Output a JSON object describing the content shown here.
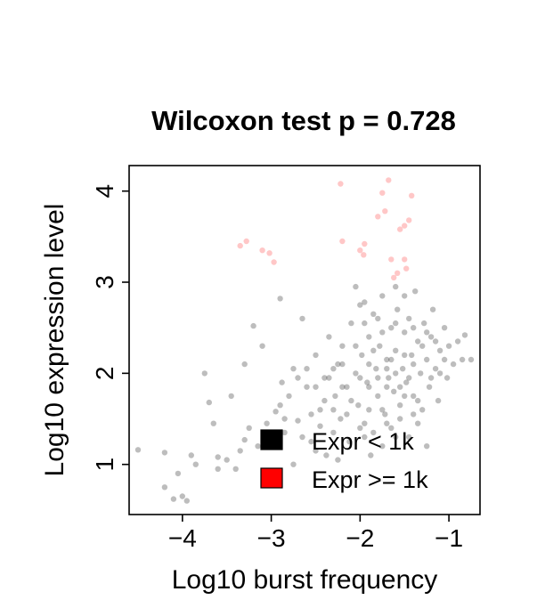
{
  "chart_data": {
    "type": "scatter",
    "title": "Wilcoxon test p = 0.728",
    "xlabel": "Log10 burst frequency",
    "ylabel": "Log10 expression level",
    "xlim": [
      -4.6,
      -0.65
    ],
    "ylim": [
      0.45,
      4.28
    ],
    "xticks": [
      -4,
      -3,
      -2,
      -1
    ],
    "yticks": [
      1,
      2,
      3,
      4
    ],
    "xtick_labels": [
      "−4",
      "−3",
      "−2",
      "−1"
    ],
    "ytick_labels": [
      "1",
      "2",
      "3",
      "4"
    ],
    "legend_position": "bottom-right",
    "series": [
      {
        "name": "Expr < 1k",
        "color": "#000000",
        "points": [
          [
            -4.5,
            1.16
          ],
          [
            -4.2,
            1.13
          ],
          [
            -4.2,
            0.75
          ],
          [
            -4.1,
            0.62
          ],
          [
            -4.05,
            0.9
          ],
          [
            -4.0,
            0.65
          ],
          [
            -3.95,
            0.6
          ],
          [
            -3.9,
            1.1
          ],
          [
            -3.85,
            1.0
          ],
          [
            -3.75,
            2.0
          ],
          [
            -3.7,
            1.68
          ],
          [
            -3.65,
            1.45
          ],
          [
            -3.6,
            1.08
          ],
          [
            -3.45,
            1.75
          ],
          [
            -3.4,
            0.95
          ],
          [
            -3.3,
            1.27
          ],
          [
            -3.3,
            2.1
          ],
          [
            -3.25,
            1.4
          ],
          [
            -3.2,
            2.52
          ],
          [
            -3.1,
            2.3
          ],
          [
            -3.0,
            1.2
          ],
          [
            -2.95,
            1.58
          ],
          [
            -2.9,
            2.82
          ],
          [
            -2.88,
            1.9
          ],
          [
            -2.85,
            1.35
          ],
          [
            -2.8,
            1.75
          ],
          [
            -2.75,
            1.0
          ],
          [
            -2.7,
            1.48
          ],
          [
            -2.65,
            2.6
          ],
          [
            -2.6,
            1.85
          ],
          [
            -2.55,
            1.25
          ],
          [
            -2.5,
            2.2
          ],
          [
            -2.45,
            1.6
          ],
          [
            -2.4,
            1.95
          ],
          [
            -2.38,
            1.1
          ],
          [
            -2.35,
            2.4
          ],
          [
            -2.3,
            1.35
          ],
          [
            -2.28,
            1.75
          ],
          [
            -2.25,
            2.1
          ],
          [
            -2.22,
            1.5
          ],
          [
            -2.2,
            2.3
          ],
          [
            -2.15,
            1.85
          ],
          [
            -2.12,
            1.25
          ],
          [
            -2.1,
            2.55
          ],
          [
            -2.05,
            2.0
          ],
          [
            -2.02,
            1.65
          ],
          [
            -2.0,
            2.75
          ],
          [
            -1.98,
            2.2
          ],
          [
            -1.95,
            1.45
          ],
          [
            -1.92,
            1.9
          ],
          [
            -1.9,
            2.4
          ],
          [
            -1.88,
            1.1
          ],
          [
            -1.85,
            2.65
          ],
          [
            -1.82,
            2.05
          ],
          [
            -1.8,
            1.75
          ],
          [
            -1.78,
            2.3
          ],
          [
            -1.75,
            2.85
          ],
          [
            -1.72,
            1.55
          ],
          [
            -1.7,
            2.15
          ],
          [
            -1.68,
            1.95
          ],
          [
            -1.65,
            2.5
          ],
          [
            -1.62,
            1.8
          ],
          [
            -1.6,
            2.25
          ],
          [
            -1.58,
            2.7
          ],
          [
            -1.55,
            1.65
          ],
          [
            -1.52,
            2.05
          ],
          [
            -1.5,
            2.45
          ],
          [
            -1.48,
            1.9
          ],
          [
            -1.45,
            2.6
          ],
          [
            -1.42,
            2.2
          ],
          [
            -1.4,
            1.75
          ],
          [
            -1.38,
            2.9
          ],
          [
            -1.35,
            2.35
          ],
          [
            -1.32,
            2.0
          ],
          [
            -1.3,
            1.6
          ],
          [
            -1.28,
            2.55
          ],
          [
            -1.25,
            2.15
          ],
          [
            -1.22,
            1.85
          ],
          [
            -1.2,
            2.4
          ],
          [
            -1.18,
            2.7
          ],
          [
            -1.15,
            2.05
          ],
          [
            -1.12,
            1.7
          ],
          [
            -1.1,
            2.25
          ],
          [
            -1.05,
            2.5
          ],
          [
            -1.02,
            1.95
          ],
          [
            -1.0,
            2.3
          ],
          [
            -0.95,
            2.1
          ],
          [
            -0.9,
            2.35
          ],
          [
            -0.85,
            2.15
          ],
          [
            -0.82,
            2.42
          ],
          [
            -0.75,
            2.15
          ],
          [
            -1.95,
            2.78
          ],
          [
            -1.85,
            1.35
          ],
          [
            -1.75,
            1.2
          ],
          [
            -1.65,
            1.4
          ],
          [
            -2.25,
            1.05
          ],
          [
            -2.45,
            1.42
          ],
          [
            -1.55,
            1.5
          ],
          [
            -1.45,
            1.3
          ],
          [
            -1.35,
            1.45
          ],
          [
            -1.25,
            1.2
          ],
          [
            -2.05,
            2.95
          ],
          [
            -1.6,
            2.95
          ],
          [
            -1.5,
            2.85
          ],
          [
            -1.9,
            1.6
          ],
          [
            -2.15,
            1.55
          ],
          [
            -1.7,
            1.45
          ],
          [
            -1.95,
            1.3
          ],
          [
            -1.8,
            2.6
          ],
          [
            -1.6,
            2.0
          ],
          [
            -1.4,
            2.1
          ],
          [
            -1.7,
            1.85
          ],
          [
            -1.9,
            2.1
          ],
          [
            -2.3,
            2.05
          ],
          [
            -2.1,
            1.7
          ],
          [
            -1.5,
            2.2
          ],
          [
            -1.3,
            2.3
          ],
          [
            -1.75,
            2.45
          ],
          [
            -2.0,
            1.95
          ],
          [
            -1.85,
            2.25
          ],
          [
            -1.55,
            1.85
          ],
          [
            -1.65,
            2.15
          ],
          [
            -1.45,
            1.95
          ],
          [
            -1.35,
            1.7
          ],
          [
            -1.2,
            1.95
          ],
          [
            -1.1,
            2.0
          ],
          [
            -1.25,
            2.45
          ],
          [
            -2.2,
            1.85
          ],
          [
            -2.4,
            1.7
          ],
          [
            -2.6,
            2.05
          ],
          [
            -2.7,
            1.95
          ],
          [
            -2.55,
            1.55
          ],
          [
            -2.35,
            1.95
          ],
          [
            -1.95,
            2.55
          ],
          [
            -1.6,
            2.55
          ],
          [
            -1.4,
            2.5
          ],
          [
            -1.15,
            2.35
          ],
          [
            -1.05,
            2.15
          ],
          [
            -1.7,
            2.05
          ],
          [
            -1.8,
            1.95
          ],
          [
            -1.5,
            1.75
          ],
          [
            -1.9,
            1.85
          ],
          [
            -2.05,
            2.3
          ],
          [
            -2.2,
            2.1
          ],
          [
            -2.5,
            1.85
          ],
          [
            -2.75,
            2.05
          ],
          [
            -2.9,
            1.65
          ],
          [
            -3.05,
            1.45
          ],
          [
            -3.15,
            1.2
          ],
          [
            -3.5,
            1.05
          ],
          [
            -3.6,
            0.95
          ],
          [
            -3.35,
            1.15
          ],
          [
            -2.85,
            1.5
          ],
          [
            -2.65,
            1.3
          ],
          [
            -2.5,
            1.15
          ],
          [
            -2.3,
            1.6
          ],
          [
            -2.0,
            1.4
          ],
          [
            -1.75,
            1.6
          ],
          [
            -1.6,
            1.3
          ],
          [
            -1.4,
            1.55
          ]
        ]
      },
      {
        "name": "Expr >= 1k",
        "color": "#ff0000",
        "points": [
          [
            -3.35,
            3.4
          ],
          [
            -3.28,
            3.45
          ],
          [
            -3.1,
            3.35
          ],
          [
            -3.02,
            3.32
          ],
          [
            -2.97,
            3.22
          ],
          [
            -2.22,
            4.08
          ],
          [
            -2.2,
            3.45
          ],
          [
            -2.0,
            3.35
          ],
          [
            -1.95,
            3.42
          ],
          [
            -1.96,
            3.3
          ],
          [
            -1.8,
            3.72
          ],
          [
            -1.75,
            3.98
          ],
          [
            -1.72,
            3.78
          ],
          [
            -1.68,
            4.12
          ],
          [
            -1.65,
            3.25
          ],
          [
            -1.62,
            3.05
          ],
          [
            -1.58,
            3.1
          ],
          [
            -1.55,
            3.58
          ],
          [
            -1.5,
            3.62
          ],
          [
            -1.5,
            3.25
          ],
          [
            -1.48,
            3.15
          ],
          [
            -1.45,
            3.68
          ],
          [
            -1.42,
            3.95
          ]
        ]
      }
    ]
  }
}
